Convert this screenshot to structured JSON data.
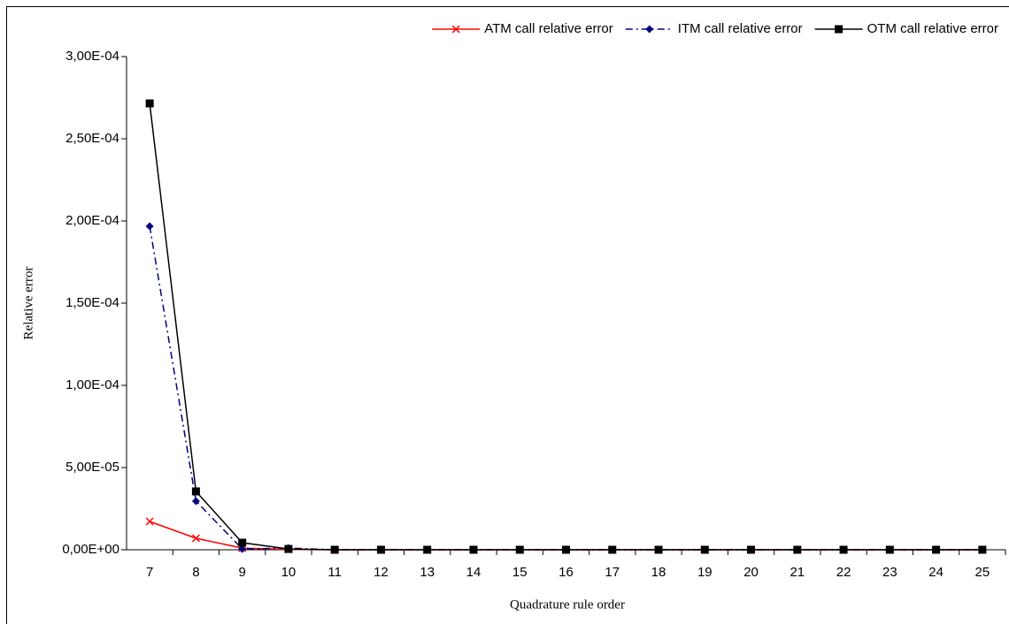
{
  "chart_data": {
    "type": "line",
    "x_label": "Quadrature rule order",
    "y_label": "Relative error",
    "categories": [
      "7",
      "8",
      "9",
      "10",
      "11",
      "12",
      "13",
      "14",
      "15",
      "16",
      "17",
      "18",
      "19",
      "20",
      "21",
      "22",
      "23",
      "24",
      "25"
    ],
    "series": [
      {
        "name": "ATM call relative error",
        "color": "#ff0000",
        "marker": "x",
        "dash": "solid",
        "values": [
          1.72e-05,
          7e-06,
          1e-06,
          2e-07,
          0,
          0,
          0,
          0,
          0,
          0,
          0,
          0,
          0,
          0,
          0,
          0,
          0,
          0,
          0
        ]
      },
      {
        "name": "ITM call relative error",
        "color": "#000080",
        "marker": "diamond",
        "dash": "dashdot",
        "values": [
          0.0001968,
          2.96e-05,
          5e-07,
          1e-06,
          0,
          0,
          0,
          0,
          0,
          0,
          0,
          0,
          0,
          0,
          0,
          0,
          0,
          0,
          0
        ]
      },
      {
        "name": "OTM call relative error",
        "color": "#000000",
        "marker": "square",
        "dash": "solid",
        "values": [
          0.0002715,
          3.55e-05,
          4.3e-06,
          5e-07,
          0,
          0,
          0,
          0,
          0,
          0,
          0,
          0,
          0,
          0,
          0,
          0,
          0,
          0,
          0
        ]
      }
    ],
    "ylim": [
      0,
      0.0003
    ],
    "yticks": [
      {
        "value": 0,
        "label": "0,00E+00"
      },
      {
        "value": 5e-05,
        "label": "5,00E-05"
      },
      {
        "value": 0.0001,
        "label": "1,00E-04"
      },
      {
        "value": 0.00015,
        "label": "1,50E-04"
      },
      {
        "value": 0.0002,
        "label": "2,00E-04"
      },
      {
        "value": 0.00025,
        "label": "2,50E-04"
      },
      {
        "value": 0.0003,
        "label": "3,00E-04"
      }
    ],
    "legend": "top-right"
  }
}
